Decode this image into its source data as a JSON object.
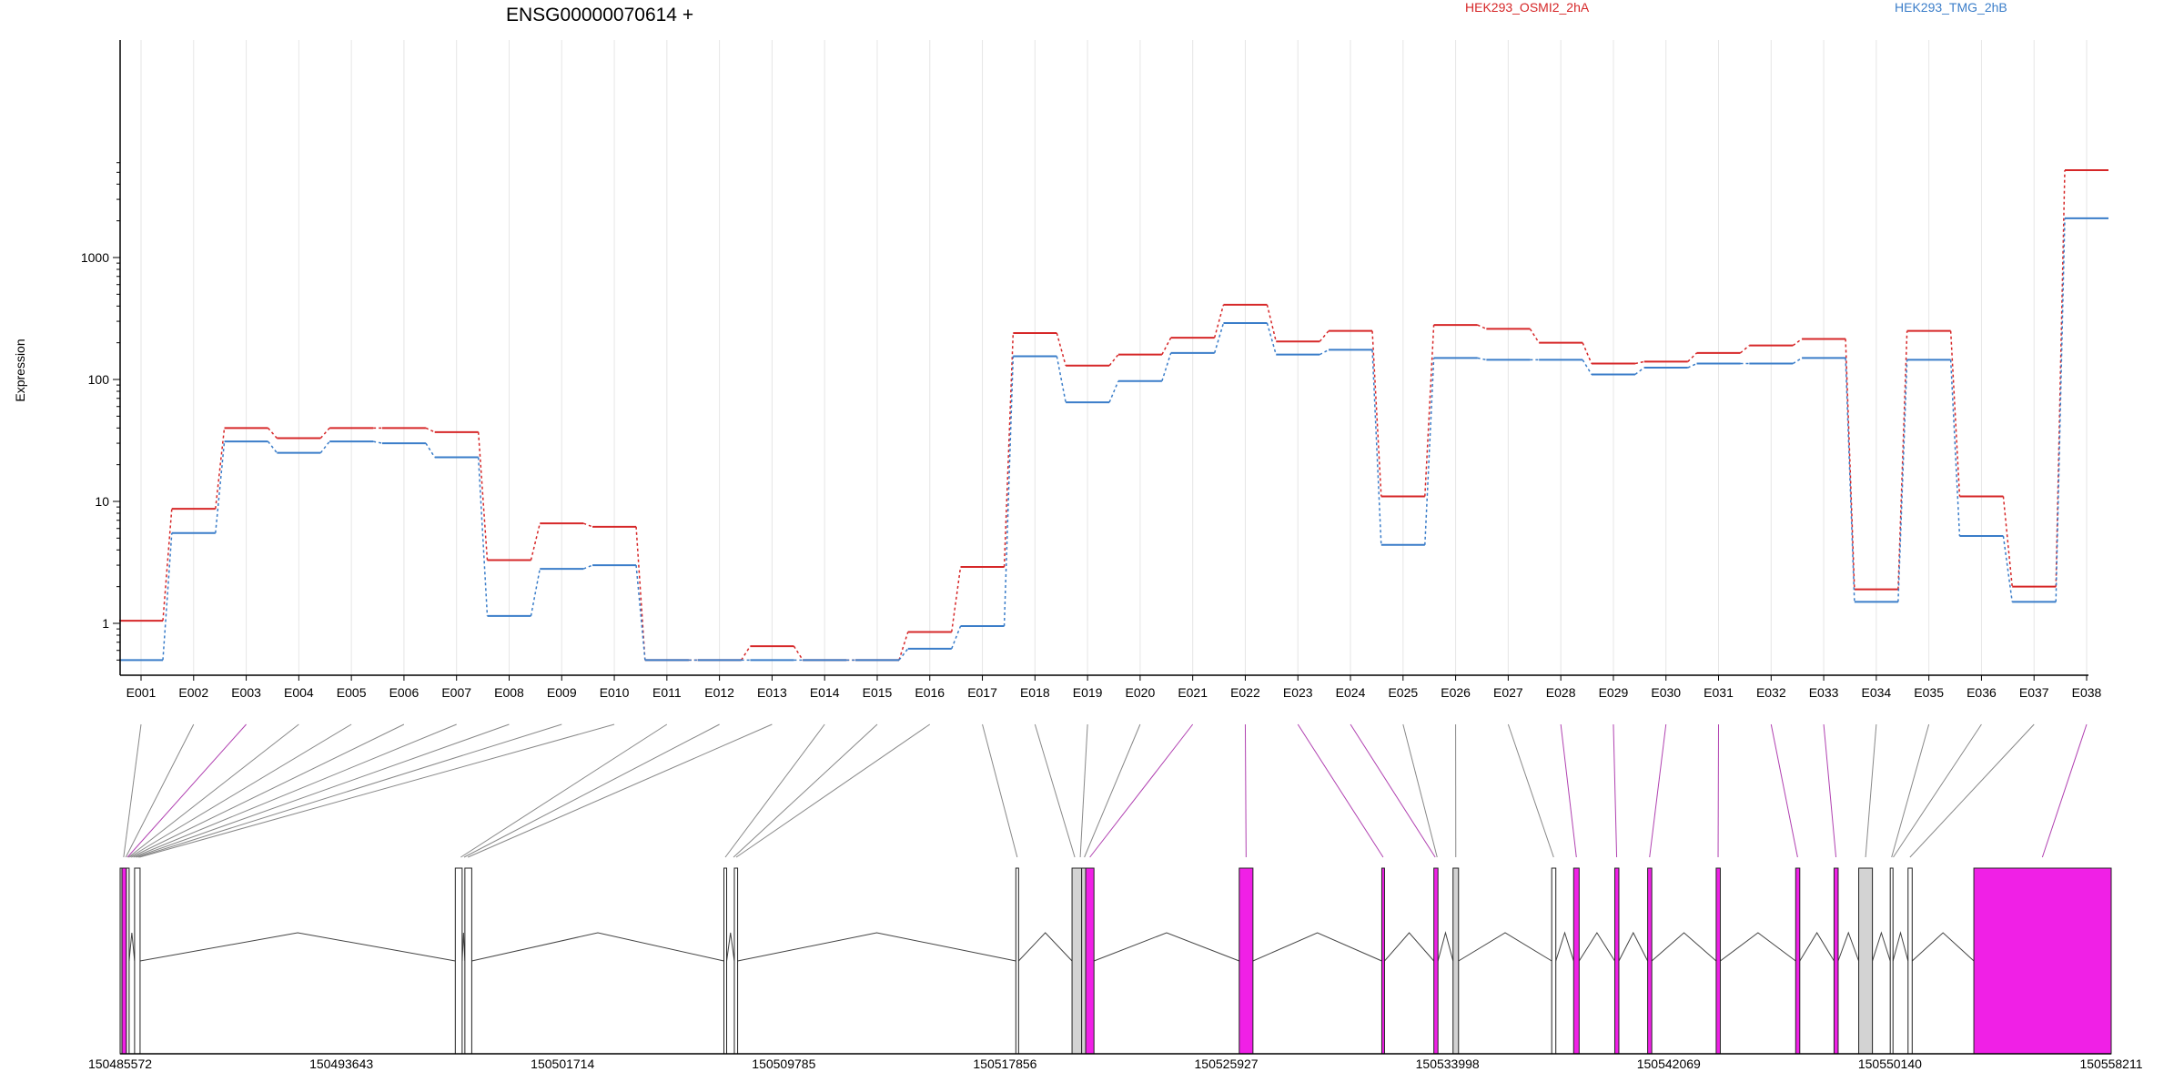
{
  "chart_data": {
    "type": "line",
    "title": "ENSG00000070614 +",
    "ylabel": "Expression",
    "xlabel": "",
    "yscale": "log",
    "ylim": [
      0.5,
      6000
    ],
    "yticks": [
      1,
      10,
      100,
      1000
    ],
    "ytick_labels": [
      "1",
      "10",
      "100",
      "1000"
    ],
    "grid": "vertical",
    "legend_position": "top",
    "categories": [
      "E001",
      "E002",
      "E003",
      "E004",
      "E005",
      "E006",
      "E007",
      "E008",
      "E009",
      "E010",
      "E011",
      "E012",
      "E013",
      "E014",
      "E015",
      "E016",
      "E017",
      "E018",
      "E019",
      "E020",
      "E021",
      "E022",
      "E023",
      "E024",
      "E025",
      "E026",
      "E027",
      "E028",
      "E029",
      "E030",
      "E031",
      "E032",
      "E033",
      "E034",
      "E035",
      "E036",
      "E037",
      "E038"
    ],
    "series": [
      {
        "name": "HEK293_OSMI2_2hA",
        "color": "#d62728",
        "values": [
          1.05,
          8.7,
          40,
          33,
          40,
          40,
          37,
          3.3,
          6.6,
          6.2,
          0.5,
          0.5,
          0.65,
          0.5,
          0.5,
          0.85,
          2.9,
          240,
          130,
          160,
          220,
          410,
          205,
          250,
          11,
          280,
          260,
          200,
          135,
          140,
          165,
          190,
          215,
          1.9,
          250,
          11,
          2.0,
          5200
        ]
      },
      {
        "name": "HEK293_TMG_2hB",
        "color": "#3a7dc9",
        "values": [
          0.5,
          5.5,
          31,
          25,
          31,
          30,
          23,
          1.15,
          2.8,
          3.0,
          0.5,
          0.5,
          0.5,
          0.5,
          0.5,
          0.62,
          0.95,
          155,
          65,
          97,
          165,
          290,
          160,
          175,
          4.4,
          150,
          145,
          145,
          110,
          125,
          135,
          135,
          150,
          1.5,
          145,
          5.2,
          1.5,
          2100
        ]
      }
    ],
    "gene_model": {
      "coordinate_range": [
        150485572,
        150558211
      ],
      "coordinate_labels": [
        "150485572",
        "150493643",
        "150501714",
        "150509785",
        "150517856",
        "150525927",
        "150533998",
        "150542069",
        "150550140",
        "150558211"
      ],
      "exon_colors": {
        "constitutive": "#ffffff",
        "gray": "#d3d3d3",
        "magenta": "#f020e6"
      },
      "exons": [
        {
          "start": 150485572,
          "end": 150485640,
          "fill": "gray"
        },
        {
          "start": 150485640,
          "end": 150485800,
          "fill": "magenta"
        },
        {
          "start": 150485800,
          "end": 150485900,
          "fill": "white"
        },
        {
          "start": 150486100,
          "end": 150486300,
          "fill": "white"
        },
        {
          "start": 150497800,
          "end": 150498050,
          "fill": "white"
        },
        {
          "start": 150498150,
          "end": 150498400,
          "fill": "white"
        },
        {
          "start": 150507600,
          "end": 150507700,
          "fill": "white"
        },
        {
          "start": 150507980,
          "end": 150508100,
          "fill": "white"
        },
        {
          "start": 150518250,
          "end": 150518350,
          "fill": "white"
        },
        {
          "start": 150520300,
          "end": 150520650,
          "fill": "gray"
        },
        {
          "start": 150520650,
          "end": 150520800,
          "fill": "gray"
        },
        {
          "start": 150520800,
          "end": 150521100,
          "fill": "magenta"
        },
        {
          "start": 150526400,
          "end": 150526900,
          "fill": "magenta"
        },
        {
          "start": 150531600,
          "end": 150531700,
          "fill": "magenta"
        },
        {
          "start": 150533500,
          "end": 150533650,
          "fill": "magenta"
        },
        {
          "start": 150534200,
          "end": 150534400,
          "fill": "gray"
        },
        {
          "start": 150537800,
          "end": 150537950,
          "fill": "white"
        },
        {
          "start": 150538600,
          "end": 150538800,
          "fill": "magenta"
        },
        {
          "start": 150540100,
          "end": 150540250,
          "fill": "magenta"
        },
        {
          "start": 150541300,
          "end": 150541450,
          "fill": "magenta"
        },
        {
          "start": 150543800,
          "end": 150543950,
          "fill": "magenta"
        },
        {
          "start": 150546700,
          "end": 150546850,
          "fill": "magenta"
        },
        {
          "start": 150548100,
          "end": 150548250,
          "fill": "magenta"
        },
        {
          "start": 150549000,
          "end": 150549500,
          "fill": "gray"
        },
        {
          "start": 150550150,
          "end": 150550250,
          "fill": "white"
        },
        {
          "start": 150550800,
          "end": 150550950,
          "fill": "white"
        },
        {
          "start": 150553200,
          "end": 150558211,
          "fill": "magenta"
        }
      ],
      "connector_targets": [
        150485700,
        150485780,
        150485840,
        150485880,
        150485920,
        150485980,
        150486060,
        150486140,
        150486220,
        150486280,
        150498000,
        150498120,
        150498260,
        150507650,
        150507950,
        150508050,
        150518300,
        150520400,
        150520600,
        150520750,
        150520950,
        150526650,
        150531650,
        150533550,
        150533620,
        150534300,
        150537870,
        150538700,
        150540170,
        150541370,
        150543870,
        150546770,
        150548170,
        150549250,
        150550200,
        150550260,
        150550870,
        150555700
      ],
      "connector_colors": [
        "#888888",
        "#888888",
        "#b040b0",
        "#888888",
        "#888888",
        "#888888",
        "#888888",
        "#888888",
        "#888888",
        "#888888",
        "#888888",
        "#888888",
        "#888888",
        "#888888",
        "#888888",
        "#888888",
        "#888888",
        "#888888",
        "#888888",
        "#888888",
        "#b040b0",
        "#b040b0",
        "#b040b0",
        "#b040b0",
        "#888888",
        "#888888",
        "#888888",
        "#b040b0",
        "#b040b0",
        "#b040b0",
        "#b040b0",
        "#b040b0",
        "#b040b0",
        "#888888",
        "#888888",
        "#888888",
        "#888888",
        "#b040b0"
      ]
    }
  }
}
